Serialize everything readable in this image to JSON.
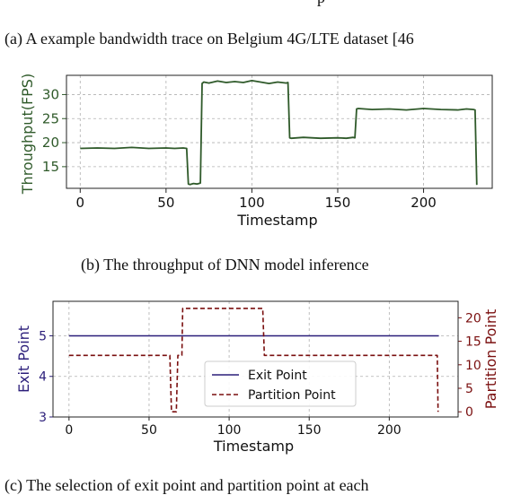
{
  "captions": {
    "top_fragment": "p",
    "a": "(a) A example bandwidth trace on Belgium 4G/LTE dataset [46",
    "b": "(b) The throughput of DNN model inference",
    "c": "(c) The selection of exit point and partition point at each"
  },
  "colors": {
    "throughput": "#2f5a2a",
    "exit": "#2b1e7a",
    "partition": "#7a0f0f",
    "grid": "#b0b0b0",
    "axis": "#222222"
  },
  "chart_data": [
    {
      "type": "line",
      "title": "",
      "xlabel": "Timestamp",
      "ylabel": "Throughput(FPS)",
      "xlim": [
        -8,
        240
      ],
      "ylim": [
        10.5,
        34
      ],
      "xticks": [
        0,
        50,
        100,
        150,
        200
      ],
      "yticks": [
        15,
        20,
        25,
        30
      ],
      "grid": true,
      "series": [
        {
          "x": [
            0,
            10,
            20,
            30,
            40,
            50,
            55,
            60,
            62,
            63,
            64,
            66,
            68,
            70,
            71,
            72,
            75,
            80,
            85,
            90,
            95,
            100,
            105,
            110,
            115,
            120,
            121,
            122,
            123,
            130,
            140,
            150,
            155,
            159,
            160,
            161,
            162,
            170,
            180,
            190,
            200,
            210,
            220,
            225,
            229,
            230,
            231
          ],
          "y": [
            18.8,
            18.9,
            18.8,
            19.0,
            18.8,
            18.9,
            18.8,
            18.9,
            18.8,
            11.4,
            11.3,
            11.5,
            11.4,
            11.6,
            32.3,
            32.6,
            32.4,
            32.8,
            32.5,
            32.7,
            32.5,
            32.9,
            32.6,
            32.3,
            32.6,
            32.4,
            32.5,
            21.0,
            20.9,
            21.1,
            20.9,
            21.0,
            20.9,
            21.1,
            21.0,
            27.0,
            27.1,
            26.9,
            27.0,
            26.8,
            27.1,
            26.9,
            26.8,
            27.0,
            26.9,
            26.8,
            11.2
          ]
        }
      ]
    },
    {
      "type": "line",
      "title": "",
      "xlabel": "Timestamp",
      "ylabel": "Exit Point",
      "y2label": "Partition Point",
      "xlim": [
        -10,
        243
      ],
      "ylim": [
        3,
        5.85
      ],
      "y2lim": [
        -1.1,
        23.5
      ],
      "xticks": [
        0,
        50,
        100,
        150,
        200
      ],
      "yticks": [
        3,
        4,
        5
      ],
      "y2ticks": [
        0,
        5,
        10,
        15,
        20
      ],
      "grid": true,
      "legend": "center",
      "series": [
        {
          "name": "Exit Point",
          "axis": "left",
          "style": "solid",
          "x": [
            0,
            231
          ],
          "y": [
            5,
            5
          ]
        },
        {
          "name": "Partition Point",
          "axis": "right",
          "style": "dashed",
          "x": [
            0,
            61,
            63,
            64,
            66,
            67,
            68,
            70,
            70.5,
            71,
            72,
            120,
            121,
            122,
            228,
            230,
            230.5
          ],
          "y": [
            12,
            12,
            12,
            0,
            0,
            0,
            12,
            12,
            12,
            22,
            22,
            22,
            22,
            12,
            12,
            12,
            0
          ]
        }
      ]
    }
  ]
}
